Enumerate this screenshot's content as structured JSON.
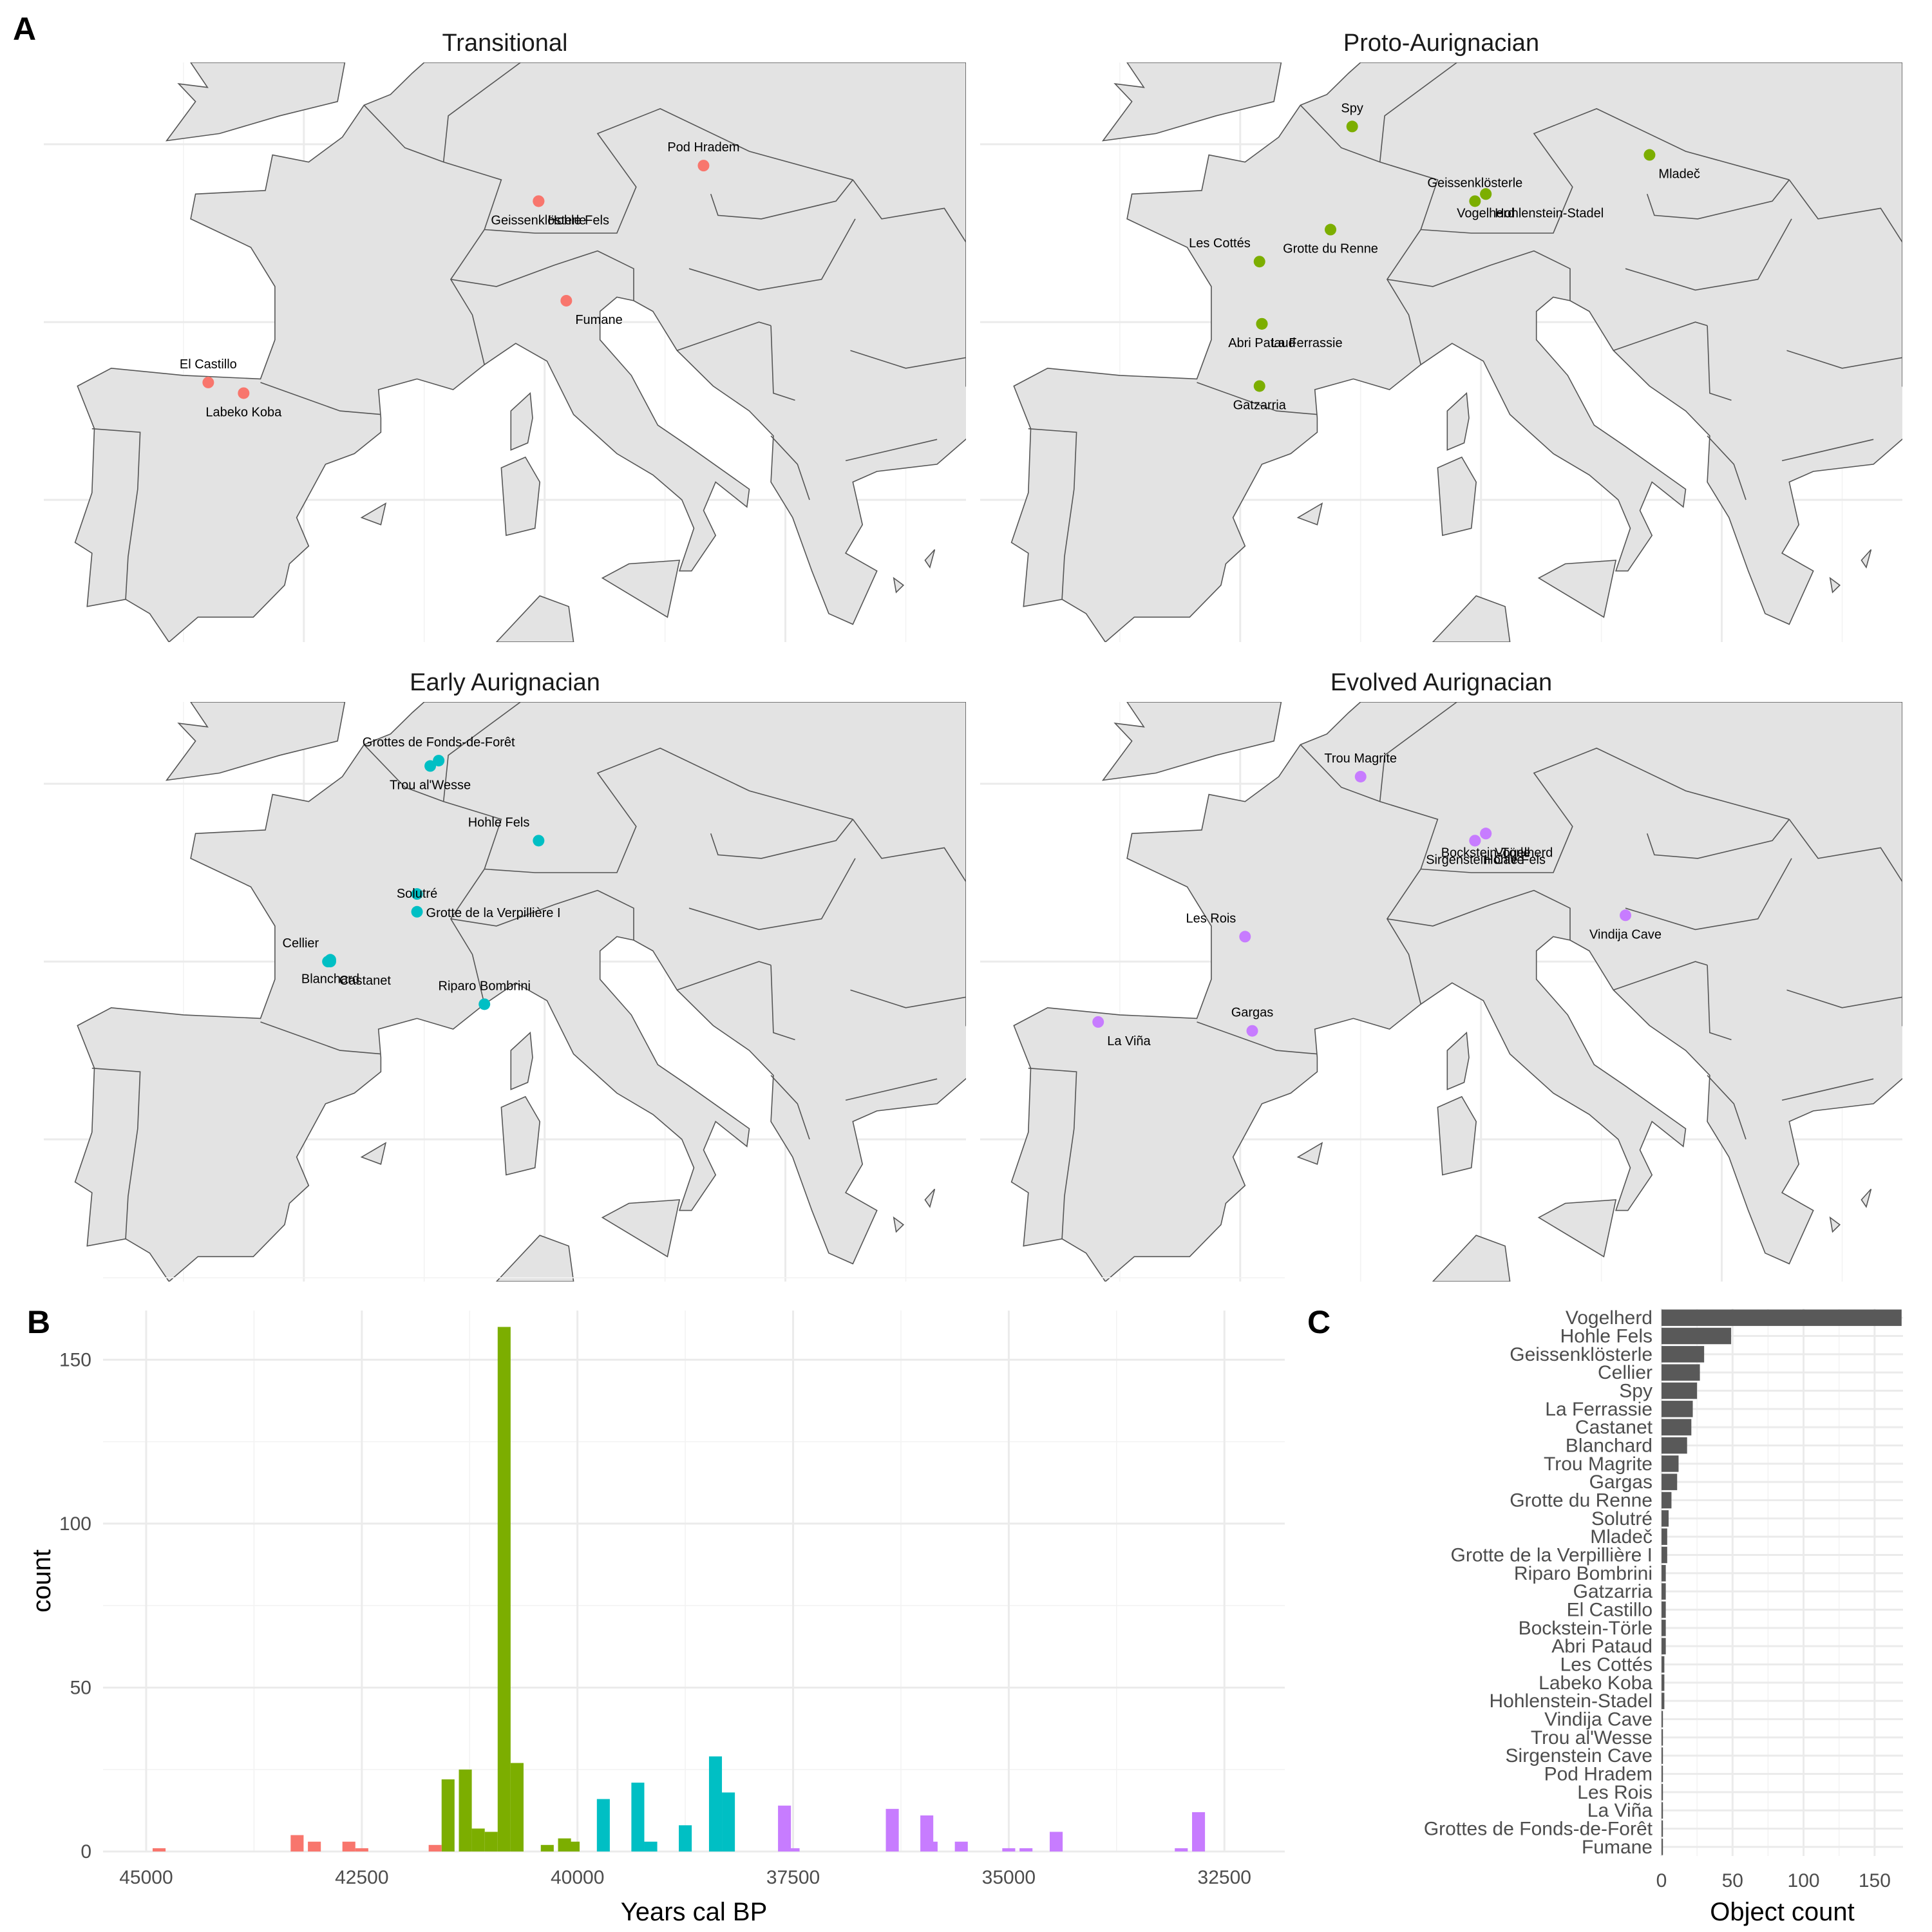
{
  "colors": {
    "Transitional": "#F8766D",
    "Proto-Aurignacian": "#7CAE00",
    "Early Aurignacian": "#00BFC4",
    "Evolved Aurignacian": "#C77CFF",
    "bar_c": "#595959",
    "land": "#e3e3e3",
    "coast": "#555555"
  },
  "panel_letters": {
    "a": "A",
    "b": "B",
    "c": "C"
  },
  "maps": [
    {
      "title": "Transitional",
      "phase": "Transitional",
      "sites": [
        {
          "name": "Pod Hradem",
          "lon": 16.6,
          "lat": 49.4
        },
        {
          "name": "Geissenklösterle",
          "lon": 9.75,
          "lat": 48.4
        },
        {
          "name": "Hohle Fels",
          "lon": 9.75,
          "lat": 48.4
        },
        {
          "name": "Fumane",
          "lon": 10.9,
          "lat": 45.6
        },
        {
          "name": "El Castillo",
          "lon": -3.97,
          "lat": 43.3
        },
        {
          "name": "Labeko Koba",
          "lon": -2.5,
          "lat": 43.0
        }
      ]
    },
    {
      "title": "Proto-Aurignacian",
      "phase": "Proto-Aurignacian",
      "sites": [
        {
          "name": "Spy",
          "lon": 4.65,
          "lat": 50.5
        },
        {
          "name": "Vogelherd",
          "lon": 10.2,
          "lat": 48.6
        },
        {
          "name": "Hohlenstein-Stadel",
          "lon": 10.2,
          "lat": 48.6
        },
        {
          "name": "Mladeč",
          "lon": 17.0,
          "lat": 49.7
        },
        {
          "name": "Geissenklösterle",
          "lon": 9.75,
          "lat": 48.4
        },
        {
          "name": "Grotte du Renne",
          "lon": 3.75,
          "lat": 47.6
        },
        {
          "name": "Les Cottés",
          "lon": 0.8,
          "lat": 46.7
        },
        {
          "name": "La Ferrassie",
          "lon": 0.9,
          "lat": 44.95
        },
        {
          "name": "Abri Pataud",
          "lon": 0.9,
          "lat": 44.95
        },
        {
          "name": "Gatzarria",
          "lon": 0.8,
          "lat": 43.2
        }
      ]
    },
    {
      "title": "Early Aurignacian",
      "phase": "Early Aurignacian",
      "sites": [
        {
          "name": "Grottes de Fonds-de-Forêt",
          "lon": 5.6,
          "lat": 50.65
        },
        {
          "name": "Trou al'Wesse",
          "lon": 5.25,
          "lat": 50.5
        },
        {
          "name": "Hohle Fels",
          "lon": 9.75,
          "lat": 48.4
        },
        {
          "name": "Grotte de la Verpillière I",
          "lon": 4.7,
          "lat": 46.9
        },
        {
          "name": "Solutré",
          "lon": 4.7,
          "lat": 46.4
        },
        {
          "name": "Blanchard",
          "lon": 1.1,
          "lat": 45.05
        },
        {
          "name": "Cellier",
          "lon": 1.0,
          "lat": 45.0
        },
        {
          "name": "Castanet",
          "lon": 1.1,
          "lat": 45.0
        },
        {
          "name": "Riparo Bombrini",
          "lon": 7.5,
          "lat": 43.8
        }
      ]
    },
    {
      "title": "Evolved Aurignacian",
      "phase": "Evolved Aurignacian",
      "sites": [
        {
          "name": "Trou Magrite",
          "lon": 5.0,
          "lat": 50.2
        },
        {
          "name": "Bockstein-Törle",
          "lon": 10.2,
          "lat": 48.6
        },
        {
          "name": "Vogelherd",
          "lon": 10.2,
          "lat": 48.6
        },
        {
          "name": "Hohle Fels",
          "lon": 9.75,
          "lat": 48.4
        },
        {
          "name": "Sirgenstein Cave",
          "lon": 9.75,
          "lat": 48.4
        },
        {
          "name": "Vindija Cave",
          "lon": 16.0,
          "lat": 46.3
        },
        {
          "name": "Les Rois",
          "lon": 0.2,
          "lat": 45.7
        },
        {
          "name": "La Viña",
          "lon": -5.9,
          "lat": 43.3
        },
        {
          "name": "Gargas",
          "lon": 0.5,
          "lat": 43.05
        }
      ]
    }
  ],
  "chart_data": [
    {
      "type": "bar",
      "panel": "B",
      "xlabel": "Years cal BP",
      "ylabel": "count",
      "xlim": [
        45500,
        31800
      ],
      "ylim": [
        0,
        165
      ],
      "x_reversed": true,
      "xticks": [
        45000,
        42500,
        40000,
        37500,
        35000,
        32500
      ],
      "yticks": [
        0,
        50,
        100,
        150
      ],
      "bin_width": 150,
      "series": [
        {
          "phase": "Transitional",
          "x": [
            44850,
            43250,
            43050,
            42650,
            42500
          ],
          "values": [
            1,
            5,
            3,
            3,
            1
          ]
        },
        {
          "phase": "Proto-Aurignacian",
          "x": [
            41500,
            41300,
            41150,
            41000,
            40850,
            40700,
            40350,
            40150,
            40050
          ],
          "values": [
            22,
            25,
            7,
            6,
            160,
            27,
            2,
            4,
            3
          ]
        },
        {
          "phase": "Early Aurignacian",
          "x": [
            39700,
            39300,
            39150,
            38750,
            38400,
            38250
          ],
          "values": [
            16,
            21,
            3,
            8,
            29,
            18
          ]
        },
        {
          "phase": "Evolved Aurignacian",
          "x": [
            37600,
            37500,
            36350,
            35950,
            35900,
            35550,
            35000,
            34800,
            34450,
            33000,
            32800
          ],
          "values": [
            14,
            1,
            13,
            11,
            3,
            3,
            1,
            1,
            6,
            1,
            12
          ]
        }
      ],
      "extra_bars": [
        {
          "phase": "Transitional",
          "x": 41650,
          "value": 2
        }
      ]
    },
    {
      "type": "bar",
      "panel": "C",
      "orientation": "horizontal",
      "xlabel": "Object count",
      "ylabel": "",
      "xlim": [
        0,
        170
      ],
      "xticks": [
        0,
        50,
        100,
        150
      ],
      "categories": [
        "Vogelherd",
        "Hohle Fels",
        "Geissenklösterle",
        "Cellier",
        "Spy",
        "La Ferrassie",
        "Castanet",
        "Blanchard",
        "Trou Magrite",
        "Gargas",
        "Grotte du Renne",
        "Solutré",
        "Mladeč",
        "Grotte de la Verpillière I",
        "Riparo Bombrini",
        "Gatzarria",
        "El Castillo",
        "Bockstein-Törle",
        "Abri Pataud",
        "Les Cottés",
        "Labeko Koba",
        "Hohlenstein-Stadel",
        "Vindija Cave",
        "Trou al'Wesse",
        "Sirgenstein Cave",
        "Pod Hradem",
        "Les Rois",
        "La Viña",
        "Grottes de Fonds-de-Forêt",
        "Fumane"
      ],
      "values": [
        169,
        49,
        30,
        27,
        25,
        22,
        21,
        18,
        12,
        11,
        7,
        5,
        4,
        4,
        3,
        3,
        3,
        3,
        3,
        2,
        2,
        2,
        1,
        1,
        1,
        1,
        1,
        1,
        1,
        1
      ]
    }
  ]
}
